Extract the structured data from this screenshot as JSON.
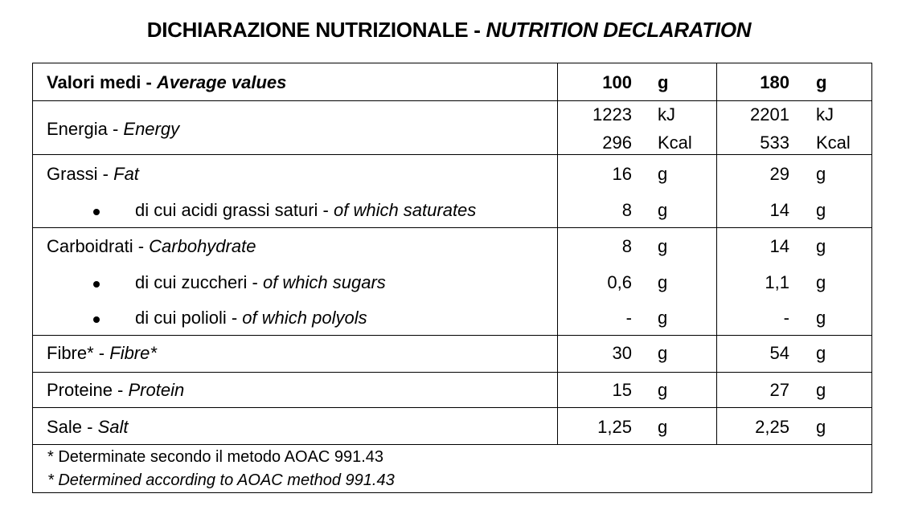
{
  "title": {
    "it": "DICHIARAZIONE NUTRIZIONALE - ",
    "en": "NUTRITION DECLARATION"
  },
  "header": {
    "label_it": "Valori medi - ",
    "label_en": "Average values",
    "col1_qty": "100",
    "col1_unit": "g",
    "col2_qty": "180",
    "col2_unit": "g"
  },
  "energy": {
    "label_it": "Energia - ",
    "label_en": "Energy",
    "c1_kj": "1223",
    "c1_kj_unit": "kJ",
    "c1_kcal": "296",
    "c1_kcal_unit": "Kcal",
    "c2_kj": "2201",
    "c2_kj_unit": "kJ",
    "c2_kcal": "533",
    "c2_kcal_unit": "Kcal"
  },
  "rows": [
    {
      "it": "Grassi - ",
      "en": "Fat",
      "v1": "16",
      "u1": "g",
      "v2": "29",
      "u2": "g"
    },
    {
      "it": "di cui acidi grassi saturi - ",
      "en": "of which saturates",
      "v1": "8",
      "u1": "g",
      "v2": "14",
      "u2": "g"
    },
    {
      "it": "Carboidrati - ",
      "en": "Carbohydrate",
      "v1": "8",
      "u1": "g",
      "v2": "14",
      "u2": "g"
    },
    {
      "it": "di cui zuccheri - ",
      "en": "of which sugars",
      "v1": "0,6",
      "u1": "g",
      "v2": "1,1",
      "u2": "g"
    },
    {
      "it": "di cui polioli - ",
      "en": "of which polyols",
      "v1": "-",
      "u1": "g",
      "v2": "-",
      "u2": "g"
    },
    {
      "it": "Fibre* - ",
      "en": "Fibre*",
      "v1": "30",
      "u1": "g",
      "v2": "54",
      "u2": "g"
    },
    {
      "it": "Proteine - ",
      "en": "Protein",
      "v1": "15",
      "u1": "g",
      "v2": "27",
      "u2": "g"
    },
    {
      "it": "Sale - ",
      "en": "Salt",
      "v1": "1,25",
      "u1": "g",
      "v2": "2,25",
      "u2": "g"
    }
  ],
  "footnote": {
    "it": "* Determinate secondo il metodo AOAC 991.43",
    "en": "* Determined according to AOAC method 991.43"
  }
}
